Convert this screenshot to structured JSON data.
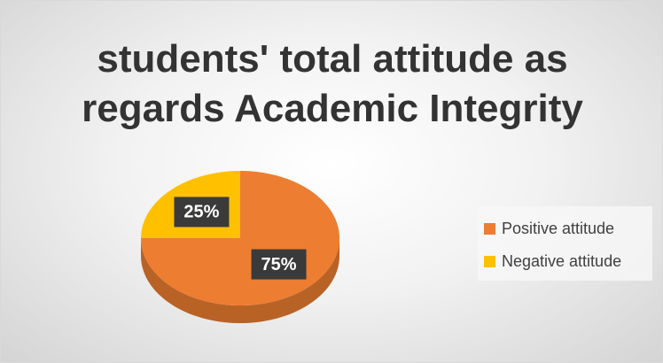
{
  "chart_data": {
    "type": "pie",
    "title": "students' total attitude as regards Academic Integrity",
    "categories": [
      "Positive attitude",
      "Negative attitude"
    ],
    "values": [
      75,
      25
    ],
    "value_labels": [
      "75%",
      "25%"
    ],
    "colors": [
      "#ED7D31",
      "#FFC000"
    ],
    "legend": "right"
  }
}
